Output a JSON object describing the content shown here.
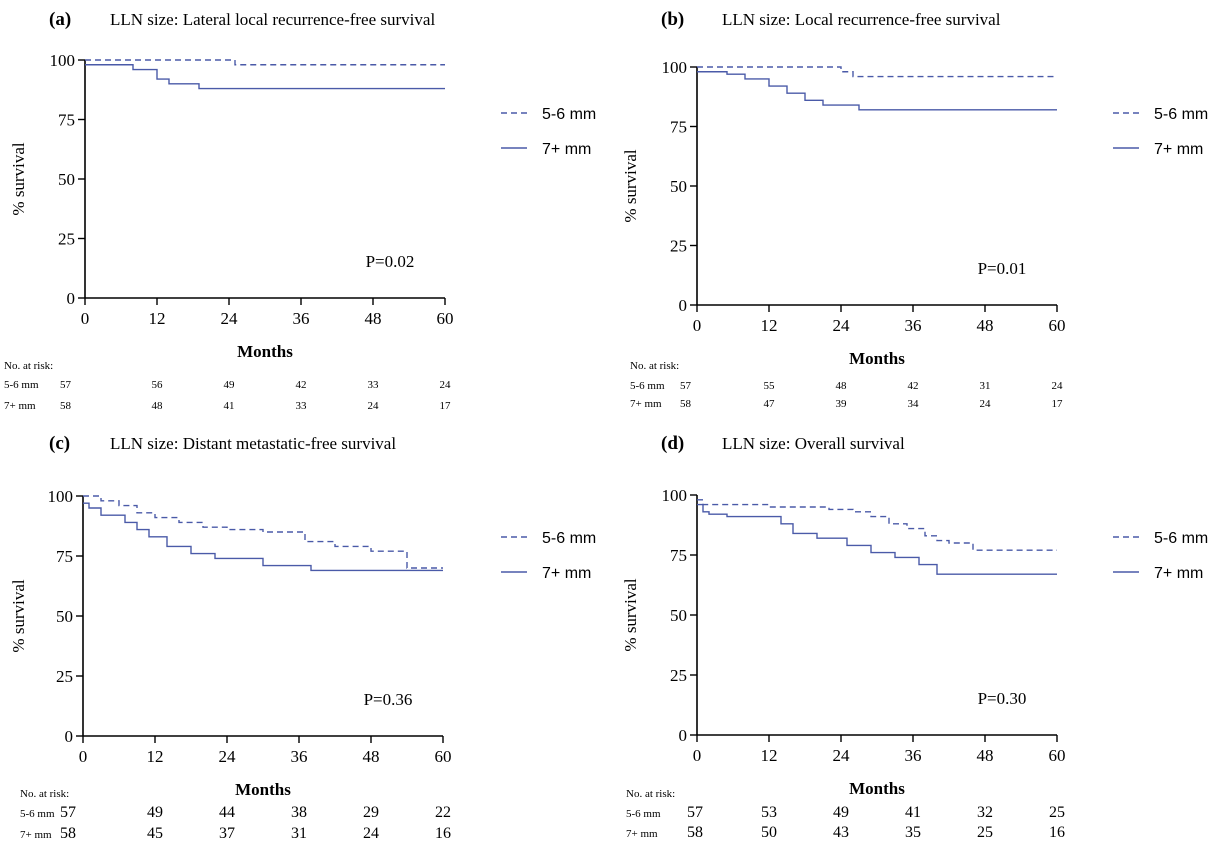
{
  "chart_data": [
    {
      "type": "line",
      "panel_label": "(a)",
      "title": "LLN size: Lateral local recurrence-free survival",
      "xlabel": "Months",
      "ylabel": "% survival",
      "xlim": [
        0,
        60
      ],
      "ylim": [
        0,
        100
      ],
      "x_ticks": [
        0,
        12,
        24,
        36,
        48,
        60
      ],
      "y_ticks": [
        0,
        25,
        50,
        75,
        100
      ],
      "p_value": "P=0.02",
      "legend_position": "right",
      "series": [
        {
          "name": "5-6 mm",
          "style": "dashed",
          "x": [
            0,
            25,
            60
          ],
          "y": [
            100,
            98,
            98
          ]
        },
        {
          "name": "7+ mm",
          "style": "solid",
          "x": [
            0,
            8,
            12,
            14,
            19,
            60
          ],
          "y": [
            98,
            96,
            92,
            90,
            88,
            88
          ]
        }
      ],
      "risk_table": {
        "title": "No. at risk:",
        "time_points": [
          0,
          12,
          24,
          36,
          48,
          60
        ],
        "rows": [
          {
            "name": "5-6 mm",
            "values": [
              57,
              56,
              49,
              42,
              33,
              24
            ]
          },
          {
            "name": "7+ mm",
            "values": [
              58,
              48,
              41,
              33,
              24,
              17
            ]
          }
        ]
      }
    },
    {
      "type": "line",
      "panel_label": "(b)",
      "title": "LLN size: Local recurrence-free survival",
      "xlabel": "Months",
      "ylabel": "% survival",
      "xlim": [
        0,
        60
      ],
      "ylim": [
        0,
        100
      ],
      "x_ticks": [
        0,
        12,
        24,
        36,
        48,
        60
      ],
      "y_ticks": [
        0,
        25,
        50,
        75,
        100
      ],
      "p_value": "P=0.01",
      "legend_position": "right",
      "series": [
        {
          "name": "5-6 mm",
          "style": "dashed",
          "x": [
            0,
            22,
            24,
            26,
            60
          ],
          "y": [
            100,
            100,
            98,
            96,
            96
          ]
        },
        {
          "name": "7+ mm",
          "style": "solid",
          "x": [
            0,
            5,
            8,
            12,
            15,
            18,
            21,
            27,
            60
          ],
          "y": [
            98,
            97,
            95,
            92,
            89,
            86,
            84,
            82,
            82
          ]
        }
      ],
      "risk_table": {
        "title": "No. at risk:",
        "time_points": [
          0,
          12,
          24,
          36,
          48,
          60
        ],
        "rows": [
          {
            "name": "5-6 mm",
            "values": [
              57,
              55,
              48,
              42,
              31,
              24
            ]
          },
          {
            "name": "7+ mm",
            "values": [
              58,
              47,
              39,
              34,
              24,
              17
            ]
          }
        ]
      }
    },
    {
      "type": "line",
      "panel_label": "(c)",
      "title": "LLN size: Distant metastatic-free survival",
      "xlabel": "Months",
      "ylabel": "% survival",
      "xlim": [
        0,
        60
      ],
      "ylim": [
        0,
        100
      ],
      "x_ticks": [
        0,
        12,
        24,
        36,
        48,
        60
      ],
      "y_ticks": [
        0,
        25,
        50,
        75,
        100
      ],
      "p_value": "P=0.36",
      "legend_position": "right",
      "series": [
        {
          "name": "5-6 mm",
          "style": "dashed",
          "x": [
            0,
            3,
            6,
            9,
            12,
            16,
            20,
            24,
            30,
            37,
            42,
            48,
            54,
            60
          ],
          "y": [
            100,
            98,
            96,
            93,
            91,
            89,
            87,
            86,
            85,
            81,
            79,
            77,
            70,
            70
          ]
        },
        {
          "name": "7+ mm",
          "style": "solid",
          "x": [
            0,
            1,
            3,
            7,
            9,
            11,
            14,
            18,
            22,
            30,
            38,
            48,
            60
          ],
          "y": [
            97,
            95,
            92,
            89,
            86,
            83,
            79,
            76,
            74,
            71,
            69,
            69,
            69
          ]
        }
      ],
      "risk_table": {
        "title": "No. at risk:",
        "time_points": [
          0,
          12,
          24,
          36,
          48,
          60
        ],
        "rows": [
          {
            "name": "5-6 mm",
            "values": [
              57,
              49,
              44,
              38,
              29,
              22
            ]
          },
          {
            "name": "7+ mm",
            "values": [
              58,
              45,
              37,
              31,
              24,
              16
            ]
          }
        ]
      }
    },
    {
      "type": "line",
      "panel_label": "(d)",
      "title": "LLN size: Overall survival",
      "xlabel": "Months",
      "ylabel": "% survival",
      "xlim": [
        0,
        60
      ],
      "ylim": [
        0,
        100
      ],
      "x_ticks": [
        0,
        12,
        24,
        36,
        48,
        60
      ],
      "y_ticks": [
        0,
        25,
        50,
        75,
        100
      ],
      "p_value": "P=0.30",
      "legend_position": "right",
      "series": [
        {
          "name": "5-6 mm",
          "style": "dashed",
          "x": [
            0,
            1,
            6,
            12,
            22,
            26,
            29,
            32,
            35,
            38,
            40,
            42,
            46,
            60
          ],
          "y": [
            98,
            96,
            96,
            95,
            94,
            93,
            91,
            88,
            86,
            83,
            81,
            80,
            77,
            77
          ]
        },
        {
          "name": "7+ mm",
          "style": "solid",
          "x": [
            0,
            1,
            2,
            5,
            12,
            14,
            16,
            20,
            25,
            29,
            33,
            37,
            40,
            60
          ],
          "y": [
            96,
            93,
            92,
            91,
            91,
            88,
            84,
            82,
            79,
            76,
            74,
            71,
            67,
            67
          ]
        }
      ],
      "risk_table": {
        "title": "No. at risk:",
        "time_points": [
          0,
          12,
          24,
          36,
          48,
          60
        ],
        "rows": [
          {
            "name": "5-6 mm",
            "values": [
              57,
              53,
              49,
              41,
              32,
              25
            ]
          },
          {
            "name": "7+ mm",
            "values": [
              58,
              50,
              43,
              35,
              25,
              16
            ]
          }
        ]
      }
    }
  ],
  "style": {
    "curve_color": "#4a5aa8",
    "axis_color": "#000000"
  }
}
